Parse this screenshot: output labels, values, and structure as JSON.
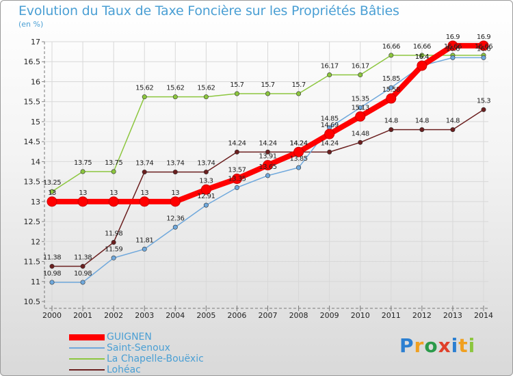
{
  "title": "Evolution du Taux de Taxe Foncière sur les Propriétés Bâties",
  "unit": "(en %)",
  "logo": "Proxiti",
  "chart_data": {
    "type": "line",
    "title": "Evolution du Taux de Taxe Foncière sur les Propriétés Bâties",
    "ylabel": "(en %)",
    "xlabel": "",
    "ylim": [
      10.5,
      17
    ],
    "yticks": [
      "10.5",
      "11",
      "11.5",
      "12",
      "12.5",
      "13",
      "13.5",
      "14",
      "14.5",
      "15",
      "15.5",
      "16",
      "16.5",
      "17"
    ],
    "categories": [
      "2000",
      "2001",
      "2002",
      "2003",
      "2004",
      "2005",
      "2006",
      "2007",
      "2008",
      "2009",
      "2010",
      "2011",
      "2012",
      "2013",
      "2014"
    ],
    "series": [
      {
        "name": "GUIGNEN",
        "color": "#ff0000",
        "values": [
          13,
          13,
          13,
          13,
          13,
          13.3,
          13.57,
          13.91,
          14.24,
          14.69,
          15.13,
          15.58,
          16.4,
          16.9,
          16.9
        ],
        "labels": [
          "13",
          "13",
          "13",
          "13",
          "13",
          "13.3",
          "13.57",
          "13.91",
          "14.24",
          "14.69",
          "15.13",
          "15.58",
          "16.4",
          "16.9",
          "16.9"
        ]
      },
      {
        "name": "Saint-Senoux",
        "color": "#6fa8dc",
        "values": [
          10.98,
          10.98,
          11.59,
          11.81,
          12.36,
          12.91,
          13.35,
          13.65,
          13.85,
          14.85,
          15.35,
          15.85,
          16.4,
          16.6,
          16.6
        ],
        "labels": [
          "10.98",
          "10.98",
          "11.59",
          "11.81",
          "12.36",
          "12.91",
          "13.35",
          "13.65",
          "13.85",
          "14.85",
          "15.35",
          "15.85",
          "16.4",
          "16.6",
          "16.6"
        ]
      },
      {
        "name": "La Chapelle-Bouëxic",
        "color": "#8cc63e",
        "values": [
          13.25,
          13.75,
          13.75,
          15.62,
          15.62,
          15.62,
          15.7,
          15.7,
          15.7,
          16.17,
          16.17,
          16.66,
          16.66,
          16.66,
          16.66
        ],
        "labels": [
          "13.25",
          "13.75",
          "13.75",
          "15.62",
          "15.62",
          "15.62",
          "15.7",
          "15.7",
          "15.7",
          "16.17",
          "16.17",
          "16.66",
          "16.66",
          "16.66",
          "16.66"
        ]
      },
      {
        "name": "Lohéac",
        "color": "#6b1f1f",
        "values": [
          11.38,
          11.38,
          11.98,
          13.74,
          13.74,
          13.74,
          14.24,
          14.24,
          14.24,
          14.24,
          14.48,
          14.8,
          14.8,
          14.8,
          15.3
        ],
        "labels": [
          "11.38",
          "11.38",
          "11.98",
          "13.74",
          "13.74",
          "13.74",
          "14.24",
          "14.24",
          "14.24",
          "14.24",
          "14.48",
          "14.8",
          "14.8",
          "14.8",
          "15.3"
        ]
      }
    ]
  }
}
